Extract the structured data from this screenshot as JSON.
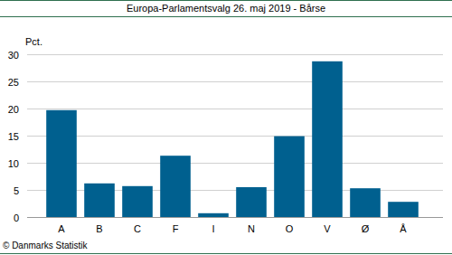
{
  "chart_data": {
    "type": "bar",
    "title": "Europa-Parlamentsvalg 26. maj 2019 - Bårse",
    "y_label": "Pct.",
    "source": "© Danmarks Statistik",
    "categories": [
      "A",
      "B",
      "C",
      "F",
      "I",
      "N",
      "O",
      "V",
      "Ø",
      "Å"
    ],
    "values": [
      19.7,
      6.2,
      5.7,
      11.3,
      0.7,
      5.5,
      14.9,
      28.7,
      5.3,
      2.8
    ],
    "color": "#00608f",
    "ylim": [
      0,
      30
    ],
    "yticks": [
      0,
      5,
      10,
      15,
      20,
      25,
      30
    ],
    "grid": true
  }
}
